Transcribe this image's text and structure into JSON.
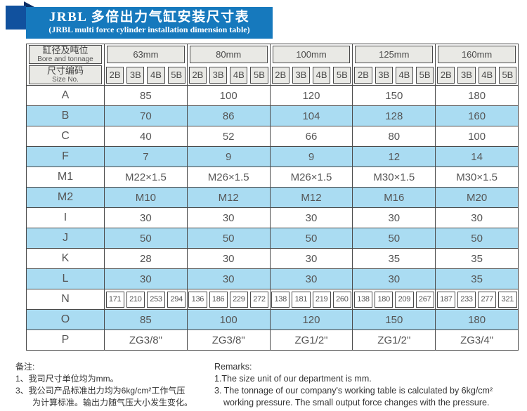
{
  "title": {
    "cn": "JRBL 多倍出力气缸安装尺寸表",
    "en": "(JRBL multi force cylinder installation dimension table)"
  },
  "colors": {
    "banner_blue": "#1679bd",
    "ribbon_blue": "#11519e",
    "fold_navy": "#0b2e66",
    "header_gray": "#e9e9e5",
    "row_blue": "#aadcf2",
    "border": "#4a4a4a"
  },
  "table": {
    "header": {
      "bore_cn": "缸径及吨位",
      "bore_en": "Bore and tonnage",
      "size_cn": "尺寸编码",
      "size_en": "Size No.",
      "groups": [
        "63mm",
        "80mm",
        "100mm",
        "125mm",
        "160mm"
      ],
      "subcols": [
        "2B",
        "3B",
        "4B",
        "5B"
      ]
    },
    "rows": [
      {
        "label": "A",
        "shade": false,
        "values": [
          "85",
          "100",
          "120",
          "150",
          "180"
        ]
      },
      {
        "label": "B",
        "shade": true,
        "values": [
          "70",
          "86",
          "104",
          "128",
          "160"
        ]
      },
      {
        "label": "C",
        "shade": false,
        "values": [
          "40",
          "52",
          "66",
          "80",
          "100"
        ]
      },
      {
        "label": "F",
        "shade": true,
        "values": [
          "7",
          "9",
          "9",
          "12",
          "14"
        ]
      },
      {
        "label": "M1",
        "shade": false,
        "values": [
          "M22×1.5",
          "M26×1.5",
          "M26×1.5",
          "M30×1.5",
          "M30×1.5"
        ]
      },
      {
        "label": "M2",
        "shade": true,
        "values": [
          "M10",
          "M12",
          "M12",
          "M16",
          "M20"
        ]
      },
      {
        "label": "I",
        "shade": false,
        "values": [
          "30",
          "30",
          "30",
          "30",
          "30"
        ]
      },
      {
        "label": "J",
        "shade": true,
        "values": [
          "50",
          "50",
          "50",
          "50",
          "50"
        ]
      },
      {
        "label": "K",
        "shade": false,
        "values": [
          "28",
          "30",
          "30",
          "35",
          "35"
        ]
      },
      {
        "label": "L",
        "shade": true,
        "values": [
          "30",
          "30",
          "30",
          "30",
          "35"
        ]
      },
      {
        "label": "N",
        "shade": false,
        "sub_values": [
          [
            "171",
            "210",
            "253",
            "294"
          ],
          [
            "136",
            "186",
            "229",
            "272"
          ],
          [
            "138",
            "181",
            "219",
            "260"
          ],
          [
            "138",
            "180",
            "209",
            "267"
          ],
          [
            "187",
            "233",
            "277",
            "321"
          ]
        ]
      },
      {
        "label": "O",
        "shade": true,
        "values": [
          "85",
          "100",
          "120",
          "150",
          "180"
        ]
      },
      {
        "label": "P",
        "shade": false,
        "values": [
          "ZG3/8\"",
          "ZG3/8\"",
          "ZG1/2\"",
          "ZG1/2\"",
          "ZG3/4\""
        ]
      }
    ]
  },
  "footnotes": {
    "cn": [
      "备注:",
      "1、我司尺寸单位均为mm。",
      "3、我公司产品标准出力均为6kg/cm²工作气压",
      "为计算标准。输出力随气压大小发生变化。"
    ],
    "en": [
      "Remarks:",
      "1.The size unit of our department is mm.",
      "3. The tonnage of our company's working table is calculated by 6kg/cm²",
      "working pressure. The small output force changes with the pressure."
    ]
  }
}
